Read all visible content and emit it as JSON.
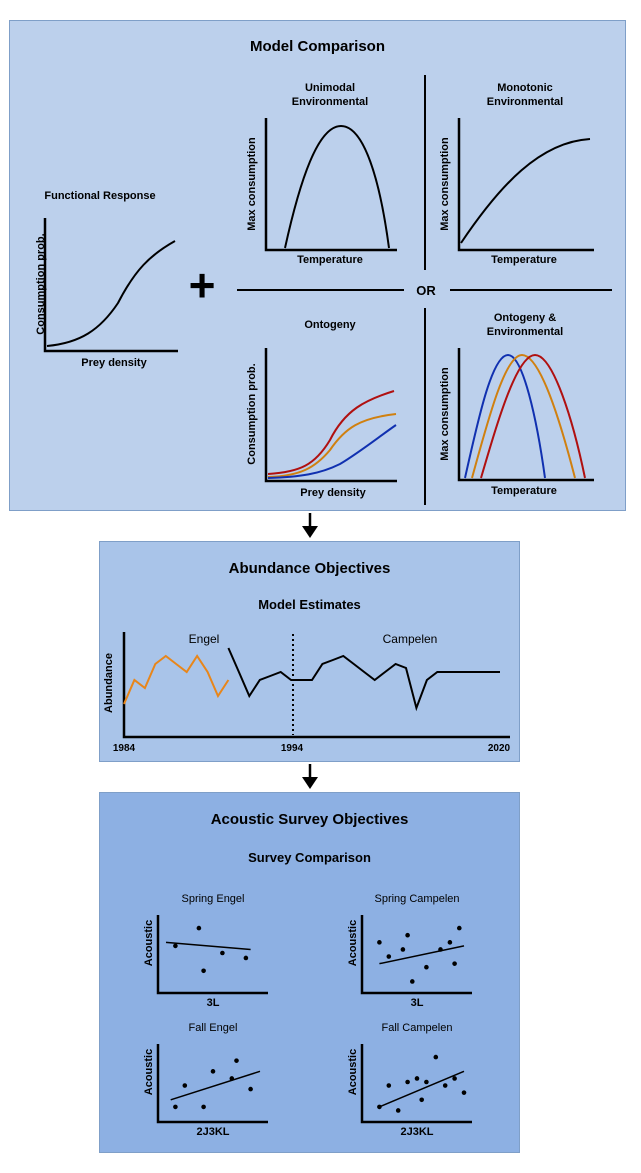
{
  "model_comparison": {
    "title": "Model Comparison",
    "functional_response": {
      "title": "Functional Response",
      "ylabel": "Consumption prob.",
      "xlabel": "Prey density"
    },
    "plus_symbol": "+",
    "or_label": "OR",
    "unimodal": {
      "title_line1": "Unimodal",
      "title_line2": "Environmental",
      "ylabel": "Max consumption",
      "xlabel": "Temperature"
    },
    "monotonic": {
      "title_line1": "Monotonic",
      "title_line2": "Environmental",
      "ylabel": "Max consumption",
      "xlabel": "Temperature"
    },
    "ontogeny": {
      "title": "Ontogeny",
      "ylabel": "Consumption prob.",
      "xlabel": "Prey density"
    },
    "ontogeny_env": {
      "title_line1": "Ontogeny &",
      "title_line2": "Environmental",
      "ylabel": "Max consumption",
      "xlabel": "Temperature"
    },
    "colors": {
      "red": "#b01010",
      "orange": "#d08010",
      "blue": "#1030b0"
    }
  },
  "abundance": {
    "title": "Abundance Objectives",
    "subtitle": "Model Estimates",
    "chart_data": {
      "type": "line",
      "ylabel": "Abundance",
      "x_ticks": [
        "1984",
        "1994",
        "2020"
      ],
      "series": [
        {
          "name": "Engel",
          "color": "#e8861a",
          "x": [
            1984,
            1985,
            1986,
            1987,
            1988,
            1989,
            1990,
            1991,
            1992,
            1993,
            1994
          ],
          "y": [
            2,
            5,
            4,
            7,
            8,
            7,
            6,
            8,
            6,
            3,
            5
          ]
        },
        {
          "name": "Campelen",
          "color": "#000000",
          "x": [
            1994,
            1995,
            1996,
            1997,
            1998,
            1999,
            2000,
            2001,
            2002,
            2003,
            2004,
            2005,
            2006,
            2007,
            2008,
            2009,
            2010,
            2011,
            2012,
            2013,
            2014,
            2015,
            2016,
            2017,
            2018,
            2019,
            2020
          ],
          "y": [
            9,
            6,
            3,
            5,
            5.5,
            6,
            5,
            5,
            5,
            7,
            7.5,
            8,
            7,
            6,
            5,
            6,
            7,
            6.5,
            1.5,
            5,
            6,
            6,
            6,
            6,
            6,
            6,
            6
          ]
        }
      ],
      "divider_x": 1994
    }
  },
  "acoustic": {
    "title": "Acoustic Survey Objectives",
    "subtitle": "Survey Comparison",
    "panels": [
      {
        "title": "Spring Engel",
        "ylabel": "Acoustic",
        "xlabel": "3L",
        "chart_data": {
          "type": "scatter",
          "points": [
            [
              1,
              5.5
            ],
            [
              3.5,
              8
            ],
            [
              4,
              2
            ],
            [
              6,
              4.5
            ],
            [
              8.5,
              3.8
            ]
          ],
          "trend": [
            [
              0,
              6
            ],
            [
              9,
              5
            ]
          ]
        }
      },
      {
        "title": "Spring Campelen",
        "ylabel": "Acoustic",
        "xlabel": "3L",
        "chart_data": {
          "type": "scatter",
          "points": [
            [
              1,
              6
            ],
            [
              2,
              4
            ],
            [
              3.5,
              5
            ],
            [
              4,
              7
            ],
            [
              4.5,
              0.5
            ],
            [
              6,
              2.5
            ],
            [
              7.5,
              5
            ],
            [
              8.5,
              6
            ],
            [
              9,
              3
            ],
            [
              9.5,
              8
            ]
          ],
          "trend": [
            [
              1,
              3
            ],
            [
              10,
              5.5
            ]
          ]
        }
      },
      {
        "title": "Fall Engel",
        "ylabel": "Acoustic",
        "xlabel": "2J3KL",
        "chart_data": {
          "type": "scatter",
          "points": [
            [
              1,
              1
            ],
            [
              2,
              4
            ],
            [
              4,
              1
            ],
            [
              5,
              6
            ],
            [
              7,
              5
            ],
            [
              7.5,
              7.5
            ],
            [
              9,
              3.5
            ]
          ],
          "trend": [
            [
              0.5,
              2
            ],
            [
              10,
              6
            ]
          ]
        }
      },
      {
        "title": "Fall Campelen",
        "ylabel": "Acoustic",
        "xlabel": "2J3KL",
        "chart_data": {
          "type": "scatter",
          "points": [
            [
              1,
              1
            ],
            [
              2,
              4
            ],
            [
              3,
              0.5
            ],
            [
              4,
              4.5
            ],
            [
              5,
              5
            ],
            [
              5.5,
              2
            ],
            [
              6,
              4.5
            ],
            [
              7,
              8
            ],
            [
              8,
              4
            ],
            [
              9,
              5
            ],
            [
              10,
              3
            ]
          ],
          "trend": [
            [
              1,
              1
            ],
            [
              10,
              6
            ]
          ]
        }
      }
    ]
  }
}
